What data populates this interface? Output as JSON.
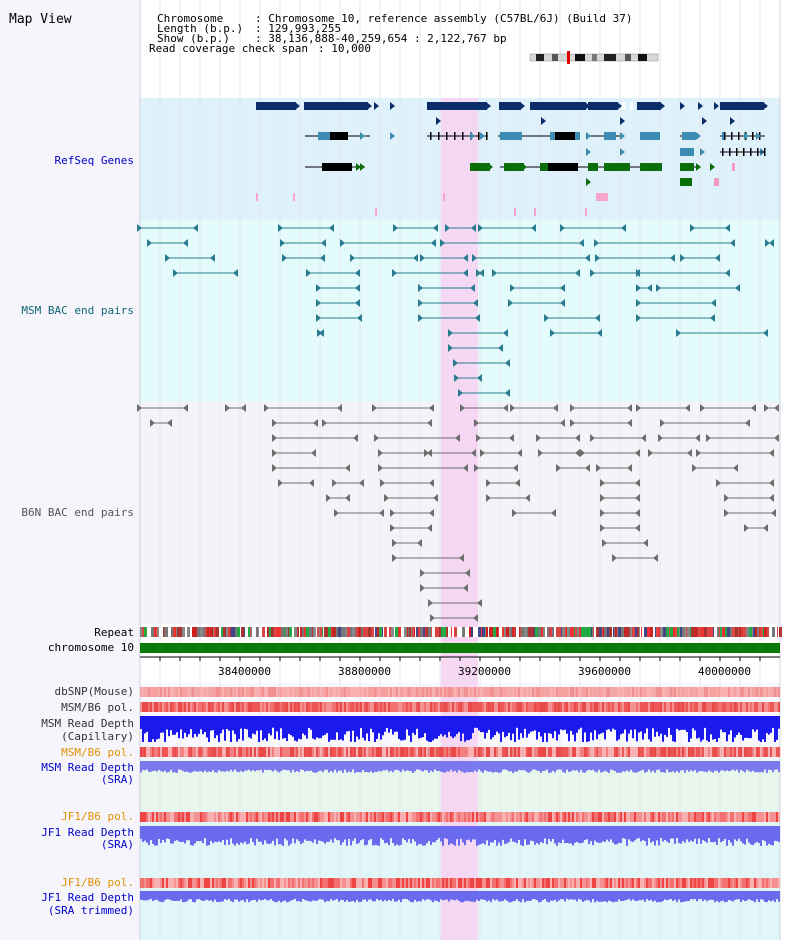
{
  "page": {
    "title": "Map View"
  },
  "header": {
    "lines": [
      {
        "label": "Chromosome      ",
        "value": ": Chromosome 10, reference assembly (C57BL/6J) (Build 37)"
      },
      {
        "label": "Length (b.p.)   ",
        "value": ": 129,993,255"
      },
      {
        "label": "  Show (b.p.)   ",
        "value": ": 38,136,888-40,259,654 : 2,122,767 bp"
      },
      {
        "label": "Read coverage check span",
        "value": " : 10,000"
      }
    ]
  },
  "tracks": {
    "refseq": "RefSeq Genes",
    "msm_bac": "MSM BAC end pairs",
    "b6n_bac": "B6N BAC end pairs",
    "repeat": "Repeat",
    "chromosome": "chromosome 10",
    "dbsnp": "dbSNP(Mouse)",
    "msm_b6_pol": "MSM/B6 pol.",
    "msm_depth_cap_1": "MSM Read Depth",
    "msm_depth_cap_2": "(Capillary)",
    "msm_b6_pol_sra": "MSM/B6 pol.",
    "msm_depth_sra_1": "MSM Read Depth",
    "msm_depth_sra_2": "(SRA)",
    "jf1_pol": "JF1/B6 pol.",
    "jf1_depth_1": "JF1 Read Depth",
    "jf1_depth_2": "(SRA)",
    "jf1_pol_trim": "JF1/B6 pol.",
    "jf1_trim_1": "JF1 Read Depth",
    "jf1_trim_2": "(SRA trimmed)"
  },
  "ruler": {
    "ticks": [
      "38400000",
      "38800000",
      "39200000",
      "39600000",
      "40000000"
    ]
  },
  "colors": {
    "refseq_bg": "#dff1fb",
    "msm_bg": "#e4fbfb",
    "b6n_bg": "#f4f4f8",
    "highlight": "#f6d4f2",
    "gene_dark": "#0b2e6b",
    "gene_mid": "#3d8db2",
    "gene_green": "#0a6e0a",
    "bac_msm": "#2a7b8f",
    "bac_b6n": "#6e6e6e",
    "chrom_green": "#0b7a0b",
    "label_blue": "#0000cc",
    "label_teal": "#116677",
    "label_orange": "#e09000",
    "depth_blue": "#1a1aee",
    "depth_light": "#7a7aee"
  }
}
